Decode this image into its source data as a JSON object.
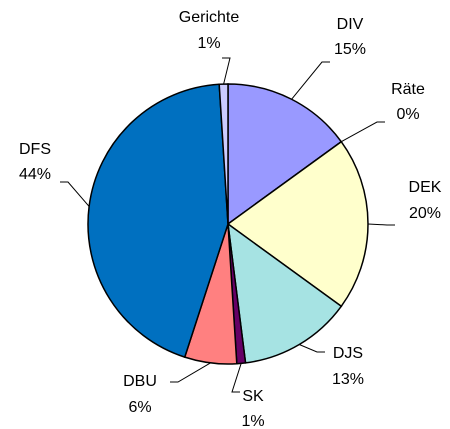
{
  "chart_data": {
    "type": "pie",
    "categories": [
      "DIV",
      "Räte",
      "DEK",
      "DJS",
      "SK",
      "DBU",
      "DFS",
      "Gerichte"
    ],
    "values": [
      15,
      0,
      20,
      13,
      1,
      6,
      44,
      1
    ],
    "value_labels": [
      "15%",
      "0%",
      "20%",
      "13%",
      "1%",
      "6%",
      "44%",
      "1%"
    ],
    "colors": [
      "#9999ff",
      "#993366",
      "#ffffcc",
      "#a6e3e3",
      "#660066",
      "#ff8080",
      "#0070c0",
      "#ccccff"
    ]
  }
}
